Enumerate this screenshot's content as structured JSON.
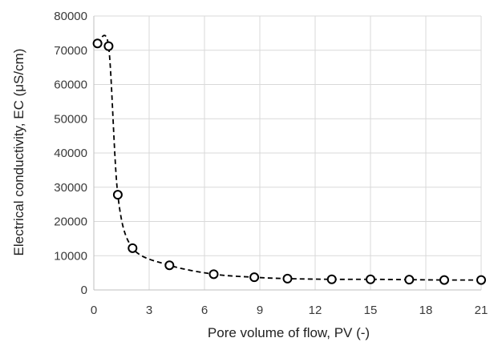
{
  "chart_data": {
    "type": "scatter",
    "title": "",
    "xlabel": "Pore volume of flow, PV (-)",
    "ylabel": "Electrical conductivity,  EC (μS/cm)",
    "xlim": [
      0,
      21
    ],
    "ylim": [
      0,
      80000
    ],
    "x_ticks": [
      0,
      3,
      6,
      9,
      12,
      15,
      18,
      21
    ],
    "y_ticks": [
      0,
      10000,
      20000,
      30000,
      40000,
      50000,
      60000,
      70000,
      80000
    ],
    "grid": true,
    "legend": "none",
    "line_style": "dashed",
    "marker": "open-circle",
    "colors": {
      "line": "#000000",
      "marker_fill": "#ffffff",
      "grid": "#d9d9d9",
      "axis": "#bfbfbf"
    },
    "series": [
      {
        "x": [
          0.2,
          0.8,
          1.3,
          2.1,
          4.1,
          6.5,
          8.7,
          10.5,
          12.9,
          15.0,
          17.1,
          19.0,
          21.0
        ],
        "y": [
          72000,
          71200,
          27800,
          12200,
          7200,
          4600,
          3700,
          3300,
          3100,
          3100,
          3000,
          2900,
          2900
        ]
      }
    ]
  }
}
